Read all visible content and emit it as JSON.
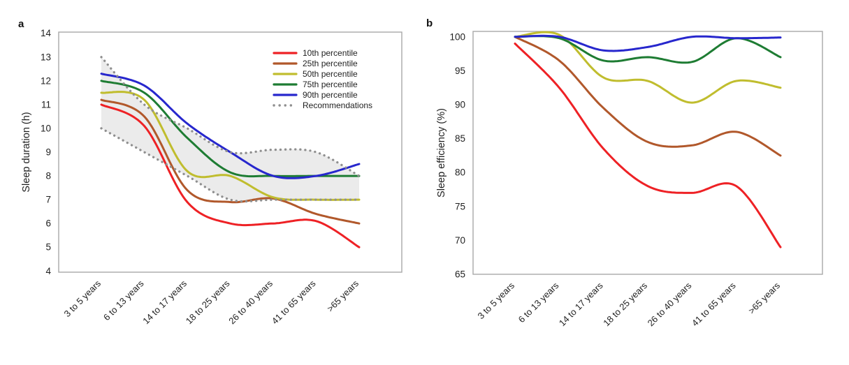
{
  "figure": {
    "panels": [
      {
        "letter": "a"
      },
      {
        "letter": "b"
      }
    ]
  },
  "legend": {
    "position": "inside-top-right-of-panel-a",
    "items": [
      {
        "label": "10th percentile",
        "color": "#ee2125",
        "style": "solid"
      },
      {
        "label": "25th percentile",
        "color": "#b1582b",
        "style": "solid"
      },
      {
        "label": "50th percentile",
        "color": "#c0bd2e",
        "style": "solid"
      },
      {
        "label": "75th percentile",
        "color": "#1e7c33",
        "style": "solid"
      },
      {
        "label": "90th percentile",
        "color": "#2727cd",
        "style": "solid"
      },
      {
        "label": "Recommendations",
        "color": "#8f8f8f",
        "style": "dotted"
      }
    ]
  },
  "chart_data": [
    {
      "id": "a",
      "type": "line",
      "ylabel": "Sleep duration (h)",
      "categories": [
        "3 to 5 years",
        "6 to 13 years",
        "14 to 17 years",
        "18 to 25 years",
        "26 to 40 years",
        "41 to 65 years",
        ">65 years"
      ],
      "ylim": [
        4,
        14
      ],
      "yticks": [
        14,
        13,
        12,
        11,
        10,
        9,
        8,
        7,
        6,
        5,
        4
      ],
      "grid": false,
      "legend_position": "top-right-inside",
      "series": [
        {
          "name": "10th percentile",
          "color": "#ee2125",
          "values": [
            11.0,
            10.1,
            6.9,
            6.0,
            6.0,
            6.1,
            5.0
          ]
        },
        {
          "name": "25th percentile",
          "color": "#b1582b",
          "values": [
            11.2,
            10.5,
            7.4,
            6.9,
            7.05,
            6.4,
            6.0
          ]
        },
        {
          "name": "50th percentile",
          "color": "#c0bd2e",
          "values": [
            11.5,
            11.2,
            8.2,
            8.0,
            7.1,
            7.0,
            7.0
          ]
        },
        {
          "name": "75th percentile",
          "color": "#1e7c33",
          "values": [
            12.0,
            11.5,
            9.6,
            8.15,
            8.0,
            8.0,
            8.0
          ]
        },
        {
          "name": "90th percentile",
          "color": "#2727cd",
          "values": [
            12.3,
            11.8,
            10.2,
            9.0,
            8.0,
            8.0,
            8.5
          ]
        }
      ],
      "recommendation_band": {
        "name": "Recommendations",
        "dot_color": "#8f8f8f",
        "fill": "#e9e9e9",
        "upper": [
          13,
          11,
          10,
          9,
          9.1,
          9,
          8
        ],
        "lower": [
          10,
          9,
          8,
          7,
          7,
          7,
          7
        ]
      }
    },
    {
      "id": "b",
      "type": "line",
      "ylabel": "Sleep efficiency (%)",
      "categories": [
        "3 to 5 years",
        "6 to 13 years",
        "14 to 17 years",
        "18 to 25 years",
        "26 to 40 years",
        "41 to 65 years",
        ">65 years"
      ],
      "ylim": [
        65,
        100
      ],
      "yticks": [
        100,
        95,
        90,
        85,
        80,
        75,
        70,
        65
      ],
      "grid": false,
      "series": [
        {
          "name": "10th percentile",
          "color": "#ee2125",
          "values": [
            99,
            92.5,
            83.5,
            78,
            77,
            78,
            69
          ]
        },
        {
          "name": "25th percentile",
          "color": "#b1582b",
          "values": [
            100,
            96.5,
            89.5,
            84.5,
            84,
            86,
            82.5
          ]
        },
        {
          "name": "50th percentile",
          "color": "#c0bd2e",
          "values": [
            100,
            100.3,
            94,
            93.5,
            90.3,
            93.5,
            92.5
          ]
        },
        {
          "name": "75th percentile",
          "color": "#1e7c33",
          "values": [
            100,
            99.8,
            96.5,
            97,
            96.3,
            99.8,
            97
          ]
        },
        {
          "name": "90th percentile",
          "color": "#2727cd",
          "values": [
            100,
            100,
            98,
            98.5,
            100,
            99.8,
            99.9
          ]
        }
      ]
    }
  ]
}
